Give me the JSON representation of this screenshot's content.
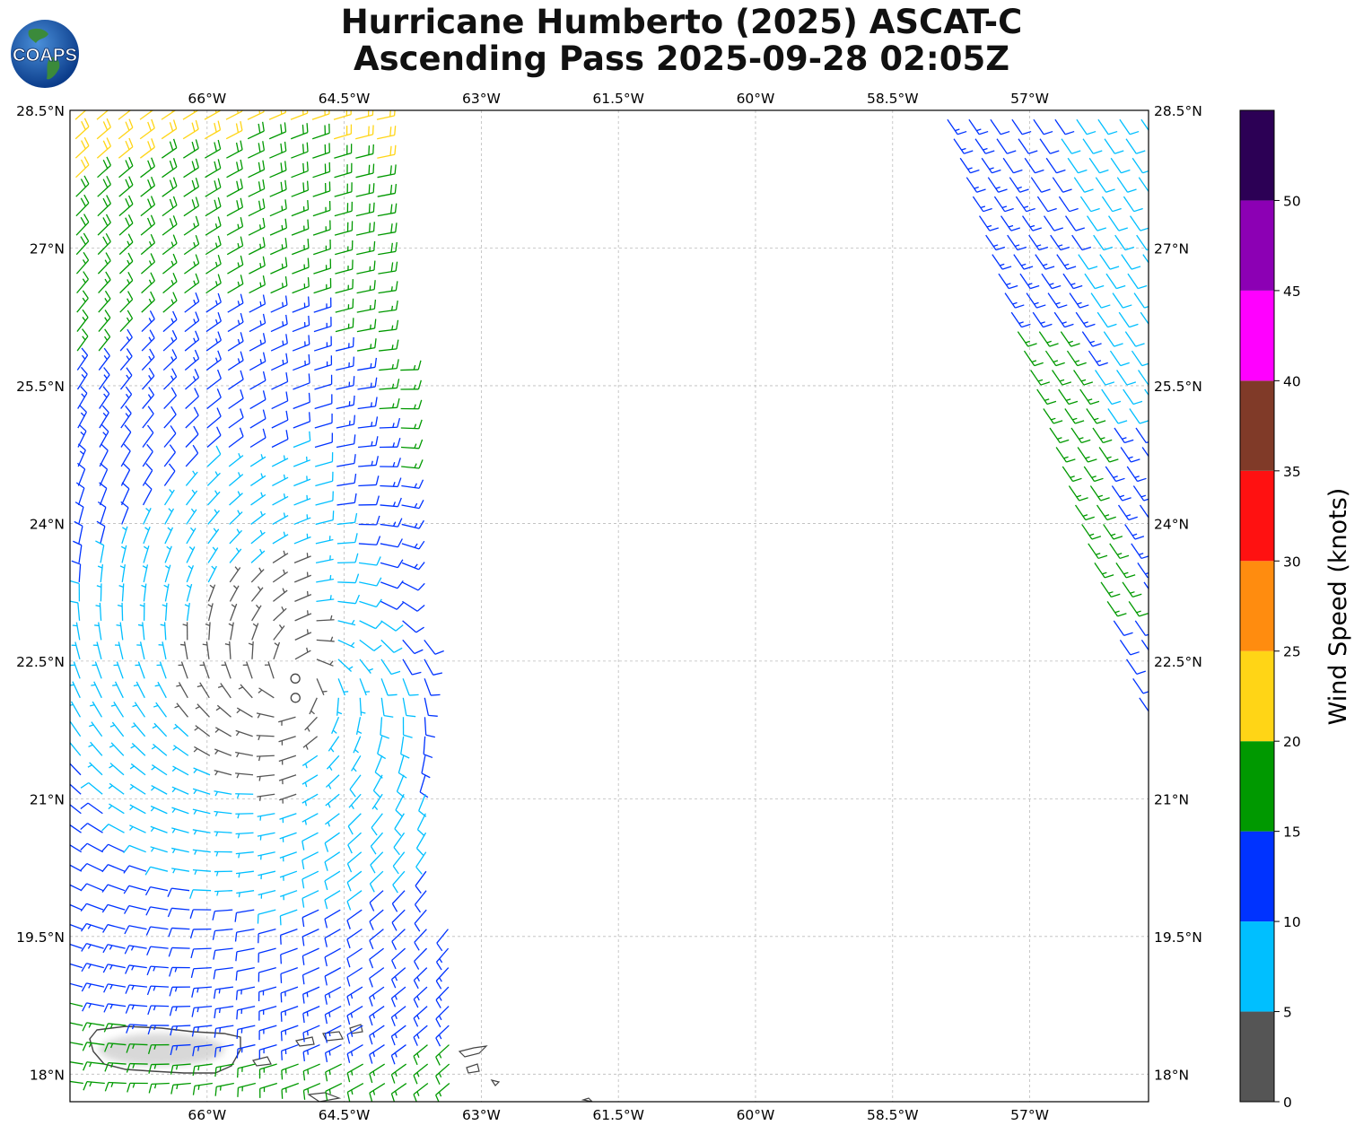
{
  "title": {
    "line1": "Hurricane Humberto (2025) ASCAT-C",
    "line2": "Ascending Pass 2025-09-28 02:05Z"
  },
  "logo": {
    "text": "COAPS",
    "icon": "globe-logo-icon"
  },
  "map": {
    "lon_range": [
      -67.5,
      -55.7
    ],
    "lat_range": [
      17.7,
      28.5
    ],
    "lon_ticks": [
      {
        "value": -66,
        "label": "66°W"
      },
      {
        "value": -64.5,
        "label": "64.5°W"
      },
      {
        "value": -63,
        "label": "63°W"
      },
      {
        "value": -61.5,
        "label": "61.5°W"
      },
      {
        "value": -60,
        "label": "60°W"
      },
      {
        "value": -58.5,
        "label": "58.5°W"
      },
      {
        "value": -57,
        "label": "57°W"
      }
    ],
    "lat_ticks": [
      {
        "value": 28.5,
        "label": "28.5°N"
      },
      {
        "value": 27,
        "label": "27°N"
      },
      {
        "value": 25.5,
        "label": "25.5°N"
      },
      {
        "value": 24,
        "label": "24°N"
      },
      {
        "value": 22.5,
        "label": "22.5°N"
      },
      {
        "value": 21,
        "label": "21°N"
      },
      {
        "value": 19.5,
        "label": "19.5°N"
      },
      {
        "value": 18,
        "label": "18°N"
      }
    ],
    "gridlines": true,
    "coastline_color": "#444444",
    "center": {
      "lon": -65.0,
      "lat": 22.3
    }
  },
  "colorbar": {
    "label": "Wind Speed (knots)",
    "ticks": [
      "0",
      "5",
      "10",
      "15",
      "20",
      "25",
      "30",
      "35",
      "40",
      "45",
      "50"
    ],
    "bins": [
      {
        "min": 0,
        "max": 5,
        "color": "#555555"
      },
      {
        "min": 5,
        "max": 10,
        "color": "#00bfff"
      },
      {
        "min": 10,
        "max": 15,
        "color": "#0033ff"
      },
      {
        "min": 15,
        "max": 20,
        "color": "#009900"
      },
      {
        "min": 20,
        "max": 25,
        "color": "#ffd516"
      },
      {
        "min": 25,
        "max": 30,
        "color": "#ff8c0f"
      },
      {
        "min": 30,
        "max": 35,
        "color": "#ff1111"
      },
      {
        "min": 35,
        "max": 40,
        "color": "#803a28"
      },
      {
        "min": 40,
        "max": 45,
        "color": "#ff00ff"
      },
      {
        "min": 45,
        "max": 50,
        "color": "#8c00b4"
      },
      {
        "min": 50,
        "max": 55,
        "color": "#2c0055"
      }
    ]
  },
  "swaths": [
    {
      "name": "west-swath",
      "lat_range": [
        17.7,
        28.4
      ],
      "west_lon": -67.5,
      "east_lon_top": -64.1,
      "east_lon_bottom": -63.2
    },
    {
      "name": "east-swath",
      "lat_range": [
        21.8,
        28.4
      ],
      "west_lon_top": -57.9,
      "west_lon_bottom": -55.7,
      "east_lon": -55.7
    }
  ]
}
